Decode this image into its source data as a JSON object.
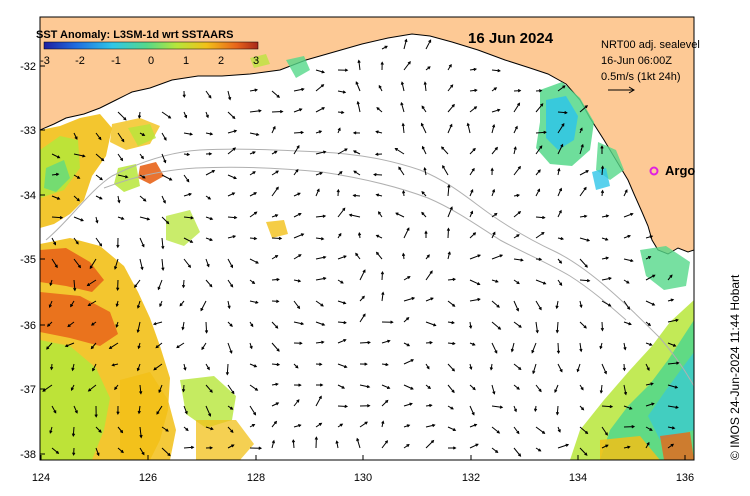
{
  "map": {
    "title": "SST Anomaly: L3SM-1d wrt SSTAARS",
    "date": "16 Jun 2024",
    "product": "NRT00 adj. sealevel",
    "valid_time": "16-Jun 06:00Z",
    "vector_scale": "0.5m/s (1kt 24h)",
    "argo_label": "Argo",
    "credit": "© IMOS 24-Jun-2024 11:44 Hobart"
  },
  "colorbar": {
    "ticks": [
      "-3",
      "-2",
      "-1",
      "0",
      "1",
      "2",
      "3"
    ],
    "colors": [
      "#1e1ea0",
      "#1f6de0",
      "#2fc6e8",
      "#55d88a",
      "#b7e63a",
      "#f2c018",
      "#e8641a",
      "#a8281a"
    ]
  },
  "axes": {
    "x_ticks": [
      "124",
      "126",
      "128",
      "130",
      "132",
      "134",
      "136"
    ],
    "y_ticks": [
      "-32",
      "-33",
      "-34",
      "-35",
      "-36",
      "-37",
      "-38"
    ]
  },
  "colors": {
    "land": "#fdc995",
    "ocean": "#ffffff",
    "argo_marker": "#e020e0",
    "bathymetry": "#b0b0b0"
  }
}
